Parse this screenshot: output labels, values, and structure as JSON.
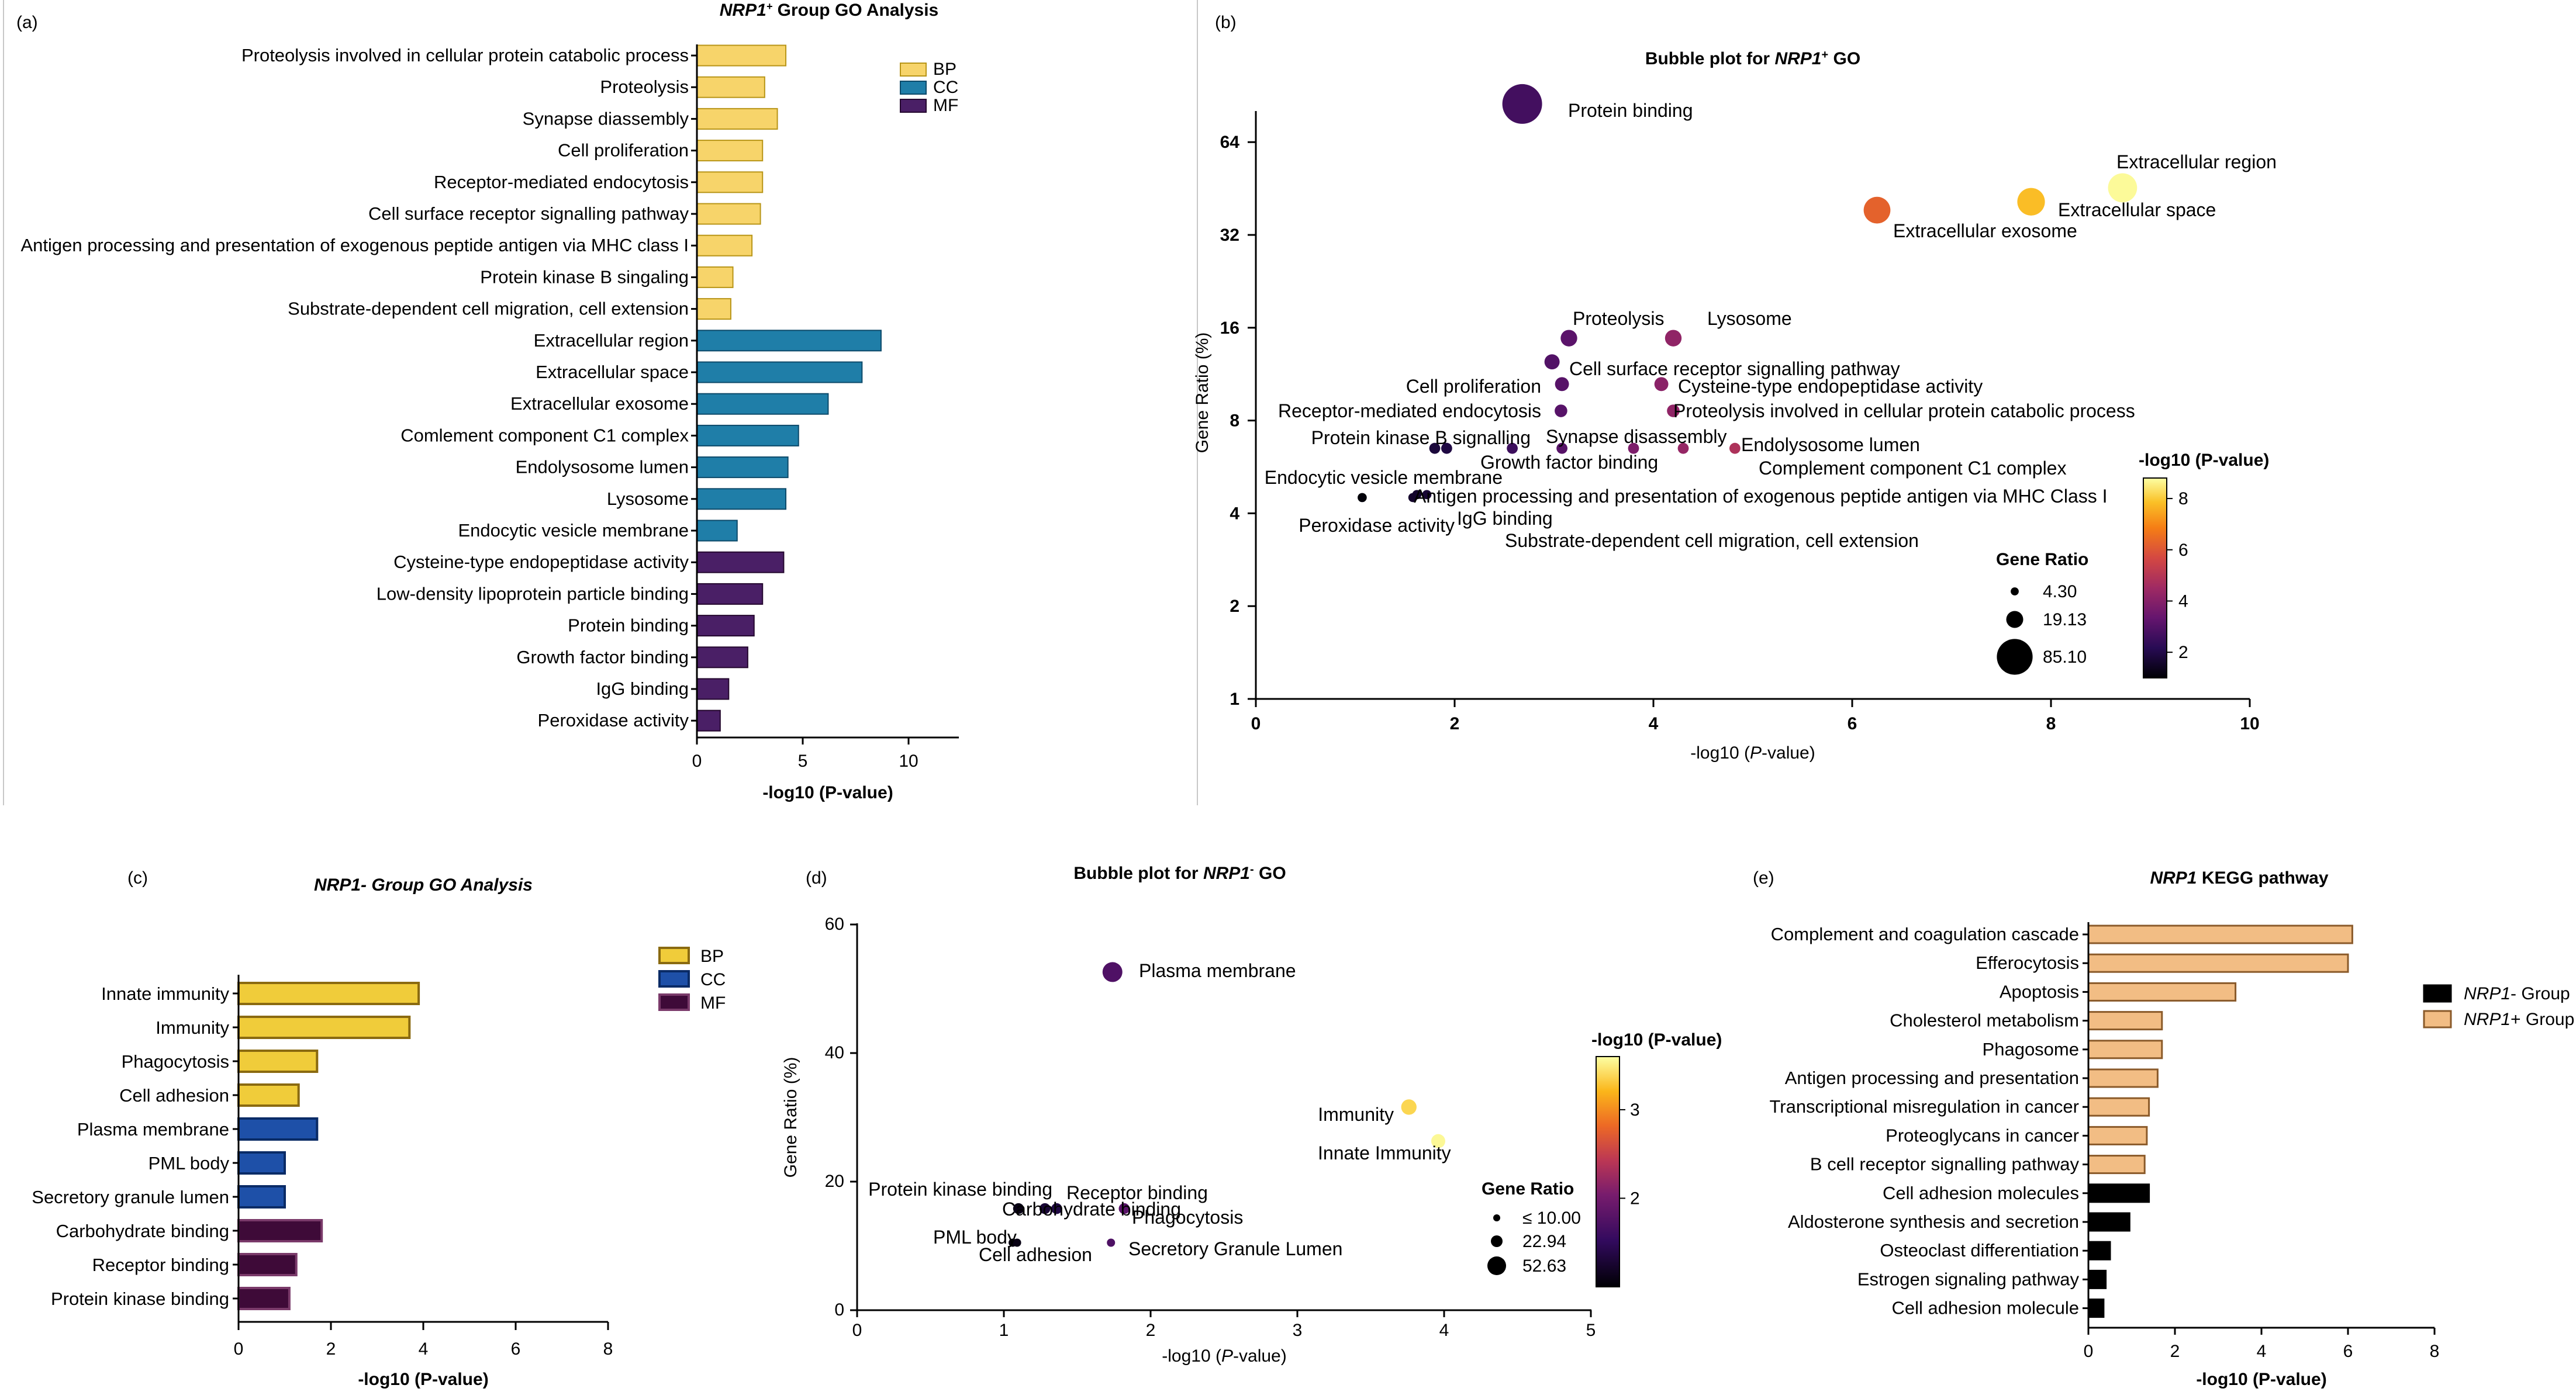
{
  "figure": {
    "panel_labels": [
      "(a)",
      "(b)",
      "(c)",
      "(d)",
      "(e)"
    ],
    "colors": {
      "BP": "#f7d46a",
      "CC": "#1f7ea8",
      "MF": "#4a1f66",
      "c_BP": "#f0cc3a",
      "c_CC": "#1e50a8",
      "c_MF": "#3e0a38",
      "pos_group": "#f2bd84",
      "neg_group": "#000000"
    }
  },
  "chart_data": [
    {
      "id": "a",
      "type": "bar",
      "orientation": "horizontal",
      "title": "NRP1+ Group GO Analysis",
      "title_parts": [
        "NRP1",
        "+",
        " Group GO Analysis"
      ],
      "xlabel": "-log10 (P-value)",
      "xlim": [
        0,
        12
      ],
      "xticks": [
        0,
        5,
        10
      ],
      "legend": [
        "BP",
        "CC",
        "MF"
      ],
      "categories": [
        "Proteolysis involved in cellular protein catabolic process",
        "Proteolysis",
        "Synapse diassembly",
        "Cell proliferation",
        "Receptor-mediated endocytosis",
        "Cell surface receptor signalling pathway",
        "Antigen processing and presentation of exogenous peptide antigen via MHC class I",
        "Protein kinase B singaling",
        "Substrate-dependent cell migration, cell extension",
        "Extracellular region",
        "Extracellular space",
        "Extracellular exosome",
        "Comlement component C1 complex",
        "Endolysosome lumen",
        "Lysosome",
        "Endocytic vesicle membrane",
        "Cysteine-type endopeptidase activity",
        "Low-density lipoprotein particle binding",
        "Protein binding",
        "Growth factor binding",
        "IgG binding",
        "Peroxidase activity"
      ],
      "values": [
        4.2,
        3.2,
        3.8,
        3.1,
        3.1,
        3.0,
        2.6,
        1.7,
        1.6,
        8.7,
        7.8,
        6.2,
        4.8,
        4.3,
        4.2,
        1.9,
        4.1,
        3.1,
        2.7,
        2.4,
        1.5,
        1.1
      ],
      "groups": [
        "BP",
        "BP",
        "BP",
        "BP",
        "BP",
        "BP",
        "BP",
        "BP",
        "BP",
        "CC",
        "CC",
        "CC",
        "CC",
        "CC",
        "CC",
        "CC",
        "MF",
        "MF",
        "MF",
        "MF",
        "MF",
        "MF"
      ]
    },
    {
      "id": "b",
      "type": "scatter",
      "subtype": "bubble",
      "title": "Bubble plot for NRP1+ GO",
      "title_parts": [
        "Bubble plot for ",
        "NRP1",
        "+",
        " GO"
      ],
      "xlabel": "-log10 (P-value)",
      "ylabel": "Gene Ratio (%)",
      "xlim": [
        0,
        10
      ],
      "xticks": [
        0,
        2,
        4,
        6,
        8,
        10
      ],
      "ylim": [
        1,
        110
      ],
      "yscale": "log2",
      "yticks": [
        1,
        2,
        4,
        8,
        16,
        32,
        64
      ],
      "color_title": "-log10 (P-value)",
      "color_ticks": [
        2,
        4,
        6,
        8
      ],
      "size_title": "Gene Ratio",
      "size_legend": [
        "4.30",
        "19.13",
        "85.10"
      ],
      "points": [
        {
          "label": "Protein binding",
          "x": 2.68,
          "y": 85.1
        },
        {
          "label": "Extracellular region",
          "x": 8.72,
          "y": 45.5
        },
        {
          "label": "Extracellular space",
          "x": 7.8,
          "y": 41.0
        },
        {
          "label": "Extracellular exosome",
          "x": 6.25,
          "y": 38.5
        },
        {
          "label": "Proteolysis",
          "x": 3.15,
          "y": 14.8
        },
        {
          "label": "Lysosome",
          "x": 4.2,
          "y": 14.8
        },
        {
          "label": "Cell surface receptor signalling pathway",
          "x": 2.98,
          "y": 12.4
        },
        {
          "label": "Cell proliferation",
          "x": 3.08,
          "y": 10.5
        },
        {
          "label": "Cysteine-type endopeptidase activity",
          "x": 4.08,
          "y": 10.5
        },
        {
          "label": "Receptor-mediated endocytosis",
          "x": 3.07,
          "y": 8.6
        },
        {
          "label": "Proteolysis involved in cellular protein catabolic process",
          "x": 4.2,
          "y": 8.6
        },
        {
          "label": "Protein kinase B signalling",
          "x": 1.8,
          "y": 6.5
        },
        {
          "label": "Substrate-dependent cell migration, cell extension",
          "x": 1.92,
          "y": 6.5
        },
        {
          "label": "Synapse disassembly",
          "x": 3.08,
          "y": 6.5
        },
        {
          "label": "Growth factor binding",
          "x": 2.58,
          "y": 6.5
        },
        {
          "label": "Low-density lipoprotein particle binding",
          "x": 3.8,
          "y": 6.5
        },
        {
          "label": "Endolysosome lumen",
          "x": 4.3,
          "y": 6.5
        },
        {
          "label": "Complement component C1 complex",
          "x": 4.82,
          "y": 6.5
        },
        {
          "label": "Endocytic vesicle membrane",
          "x": 1.62,
          "y": 4.6
        },
        {
          "label": "Antigen processing and presentation of exogenous peptide antigen via MHC Class I",
          "x": 1.72,
          "y": 4.6
        },
        {
          "label": "Peroxidase activity",
          "x": 1.07,
          "y": 4.5
        },
        {
          "label": "IgG binding",
          "x": 1.58,
          "y": 4.5
        }
      ],
      "annotations": [
        "Protein binding",
        "Extracellular region",
        "Extracellular space",
        "Extracellular exosome",
        "Proteolysis",
        "Lysosome",
        "Cell surface receptor signalling pathway",
        "Cell proliferation",
        "Cysteine-type endopeptidase activity",
        "Receptor-mediated endocytosis",
        "Proteolysis involved in cellular protein catabolic process",
        "Protein kinase B signalling",
        "Synapse disassembly",
        "Growth factor binding",
        "Endolysosome lumen",
        "Complement component C1 complex",
        "Endocytic vesicle membrane",
        "Antigen processing and presentation of exogenous peptide antigen via MHC Class I",
        "Peroxidase activity",
        "IgG binding",
        "Substrate-dependent cell migration, cell extension"
      ]
    },
    {
      "id": "c",
      "type": "bar",
      "orientation": "horizontal",
      "title": "NRP1- Group GO Analysis",
      "xlabel": "-log10 (P-value)",
      "xlim": [
        0,
        8
      ],
      "xticks": [
        0,
        2,
        4,
        6,
        8
      ],
      "legend": [
        "BP",
        "CC",
        "MF"
      ],
      "categories": [
        "Innate immunity",
        "Immunity",
        "Phagocytosis",
        "Cell adhesion",
        "Plasma membrane",
        "PML body",
        "Secretory granule lumen",
        "Carbohydrate binding",
        "Receptor binding",
        "Protein kinase binding"
      ],
      "values": [
        3.9,
        3.7,
        1.7,
        1.3,
        1.7,
        1.0,
        1.0,
        1.8,
        1.25,
        1.1
      ],
      "groups": [
        "BP",
        "BP",
        "BP",
        "BP",
        "CC",
        "CC",
        "CC",
        "MF",
        "MF",
        "MF"
      ]
    },
    {
      "id": "d",
      "type": "scatter",
      "subtype": "bubble",
      "title": "Bubble plot for NRP1- GO",
      "title_parts": [
        "Bubble plot for ",
        "NRP1",
        "-",
        " GO"
      ],
      "xlabel": "-log10 (P-value)",
      "ylabel": "Gene Ratio (%)",
      "xlim": [
        0,
        5
      ],
      "xticks": [
        0,
        1,
        2,
        3,
        4,
        5
      ],
      "ylim": [
        0,
        60
      ],
      "yticks": [
        0,
        20,
        40,
        60
      ],
      "color_title": "-log10 (P-value)",
      "color_ticks": [
        2,
        3
      ],
      "size_title": "Gene Ratio",
      "size_legend": [
        "≤  10.00",
        "22.94",
        "52.63"
      ],
      "points": [
        {
          "label": "Plasma membrane",
          "x": 1.74,
          "y": 52.6
        },
        {
          "label": "Immunity",
          "x": 3.76,
          "y": 31.6
        },
        {
          "label": "Innate Immunity",
          "x": 3.96,
          "y": 26.3
        },
        {
          "label": "Protein kinase binding",
          "x": 1.1,
          "y": 15.8
        },
        {
          "label": "Carbohydrate binding",
          "x": 1.28,
          "y": 15.8
        },
        {
          "label": "Receptor binding",
          "x": 1.36,
          "y": 15.8
        },
        {
          "label": "Phagocytosis",
          "x": 1.82,
          "y": 15.8
        },
        {
          "label": "PML body",
          "x": 1.06,
          "y": 10.5
        },
        {
          "label": "Cell adhesion",
          "x": 1.09,
          "y": 10.5
        },
        {
          "label": "Secretory Granule Lumen",
          "x": 1.73,
          "y": 10.5
        }
      ]
    },
    {
      "id": "e",
      "type": "bar",
      "orientation": "horizontal",
      "title": "NRP1 KEGG pathway",
      "title_parts": [
        "NRP1",
        " KEGG pathway"
      ],
      "xlabel": "-log10 (P-value)",
      "xlim": [
        0,
        8
      ],
      "xticks": [
        0,
        2,
        4,
        6,
        8
      ],
      "legend": [
        "NRP1- Group",
        "NRP1+ Group"
      ],
      "legend_parts": [
        [
          "NRP1",
          "- Group"
        ],
        [
          "NRP1",
          "+ Group"
        ]
      ],
      "categories": [
        "Complement and coagulation cascade",
        "Efferocytosis",
        "Apoptosis",
        "Cholesterol metabolism",
        "Phagosome",
        "Antigen processing and presentation",
        "Transcriptional misregulation in cancer",
        "Proteoglycans in cancer",
        "B cell receptor signalling pathway",
        "Cell adhesion molecules",
        "Aldosterone synthesis and secretion",
        "Osteoclast differentiation",
        "Estrogen signaling pathway",
        "Cell adhesion molecule"
      ],
      "values": [
        6.1,
        6.0,
        3.4,
        1.7,
        1.7,
        1.6,
        1.4,
        1.35,
        1.3,
        1.4,
        0.95,
        0.5,
        0.4,
        0.35
      ],
      "groups": [
        "NRP1+ Group",
        "NRP1+ Group",
        "NRP1+ Group",
        "NRP1+ Group",
        "NRP1+ Group",
        "NRP1+ Group",
        "NRP1+ Group",
        "NRP1+ Group",
        "NRP1+ Group",
        "NRP1- Group",
        "NRP1- Group",
        "NRP1- Group",
        "NRP1- Group",
        "NRP1- Group"
      ]
    }
  ]
}
